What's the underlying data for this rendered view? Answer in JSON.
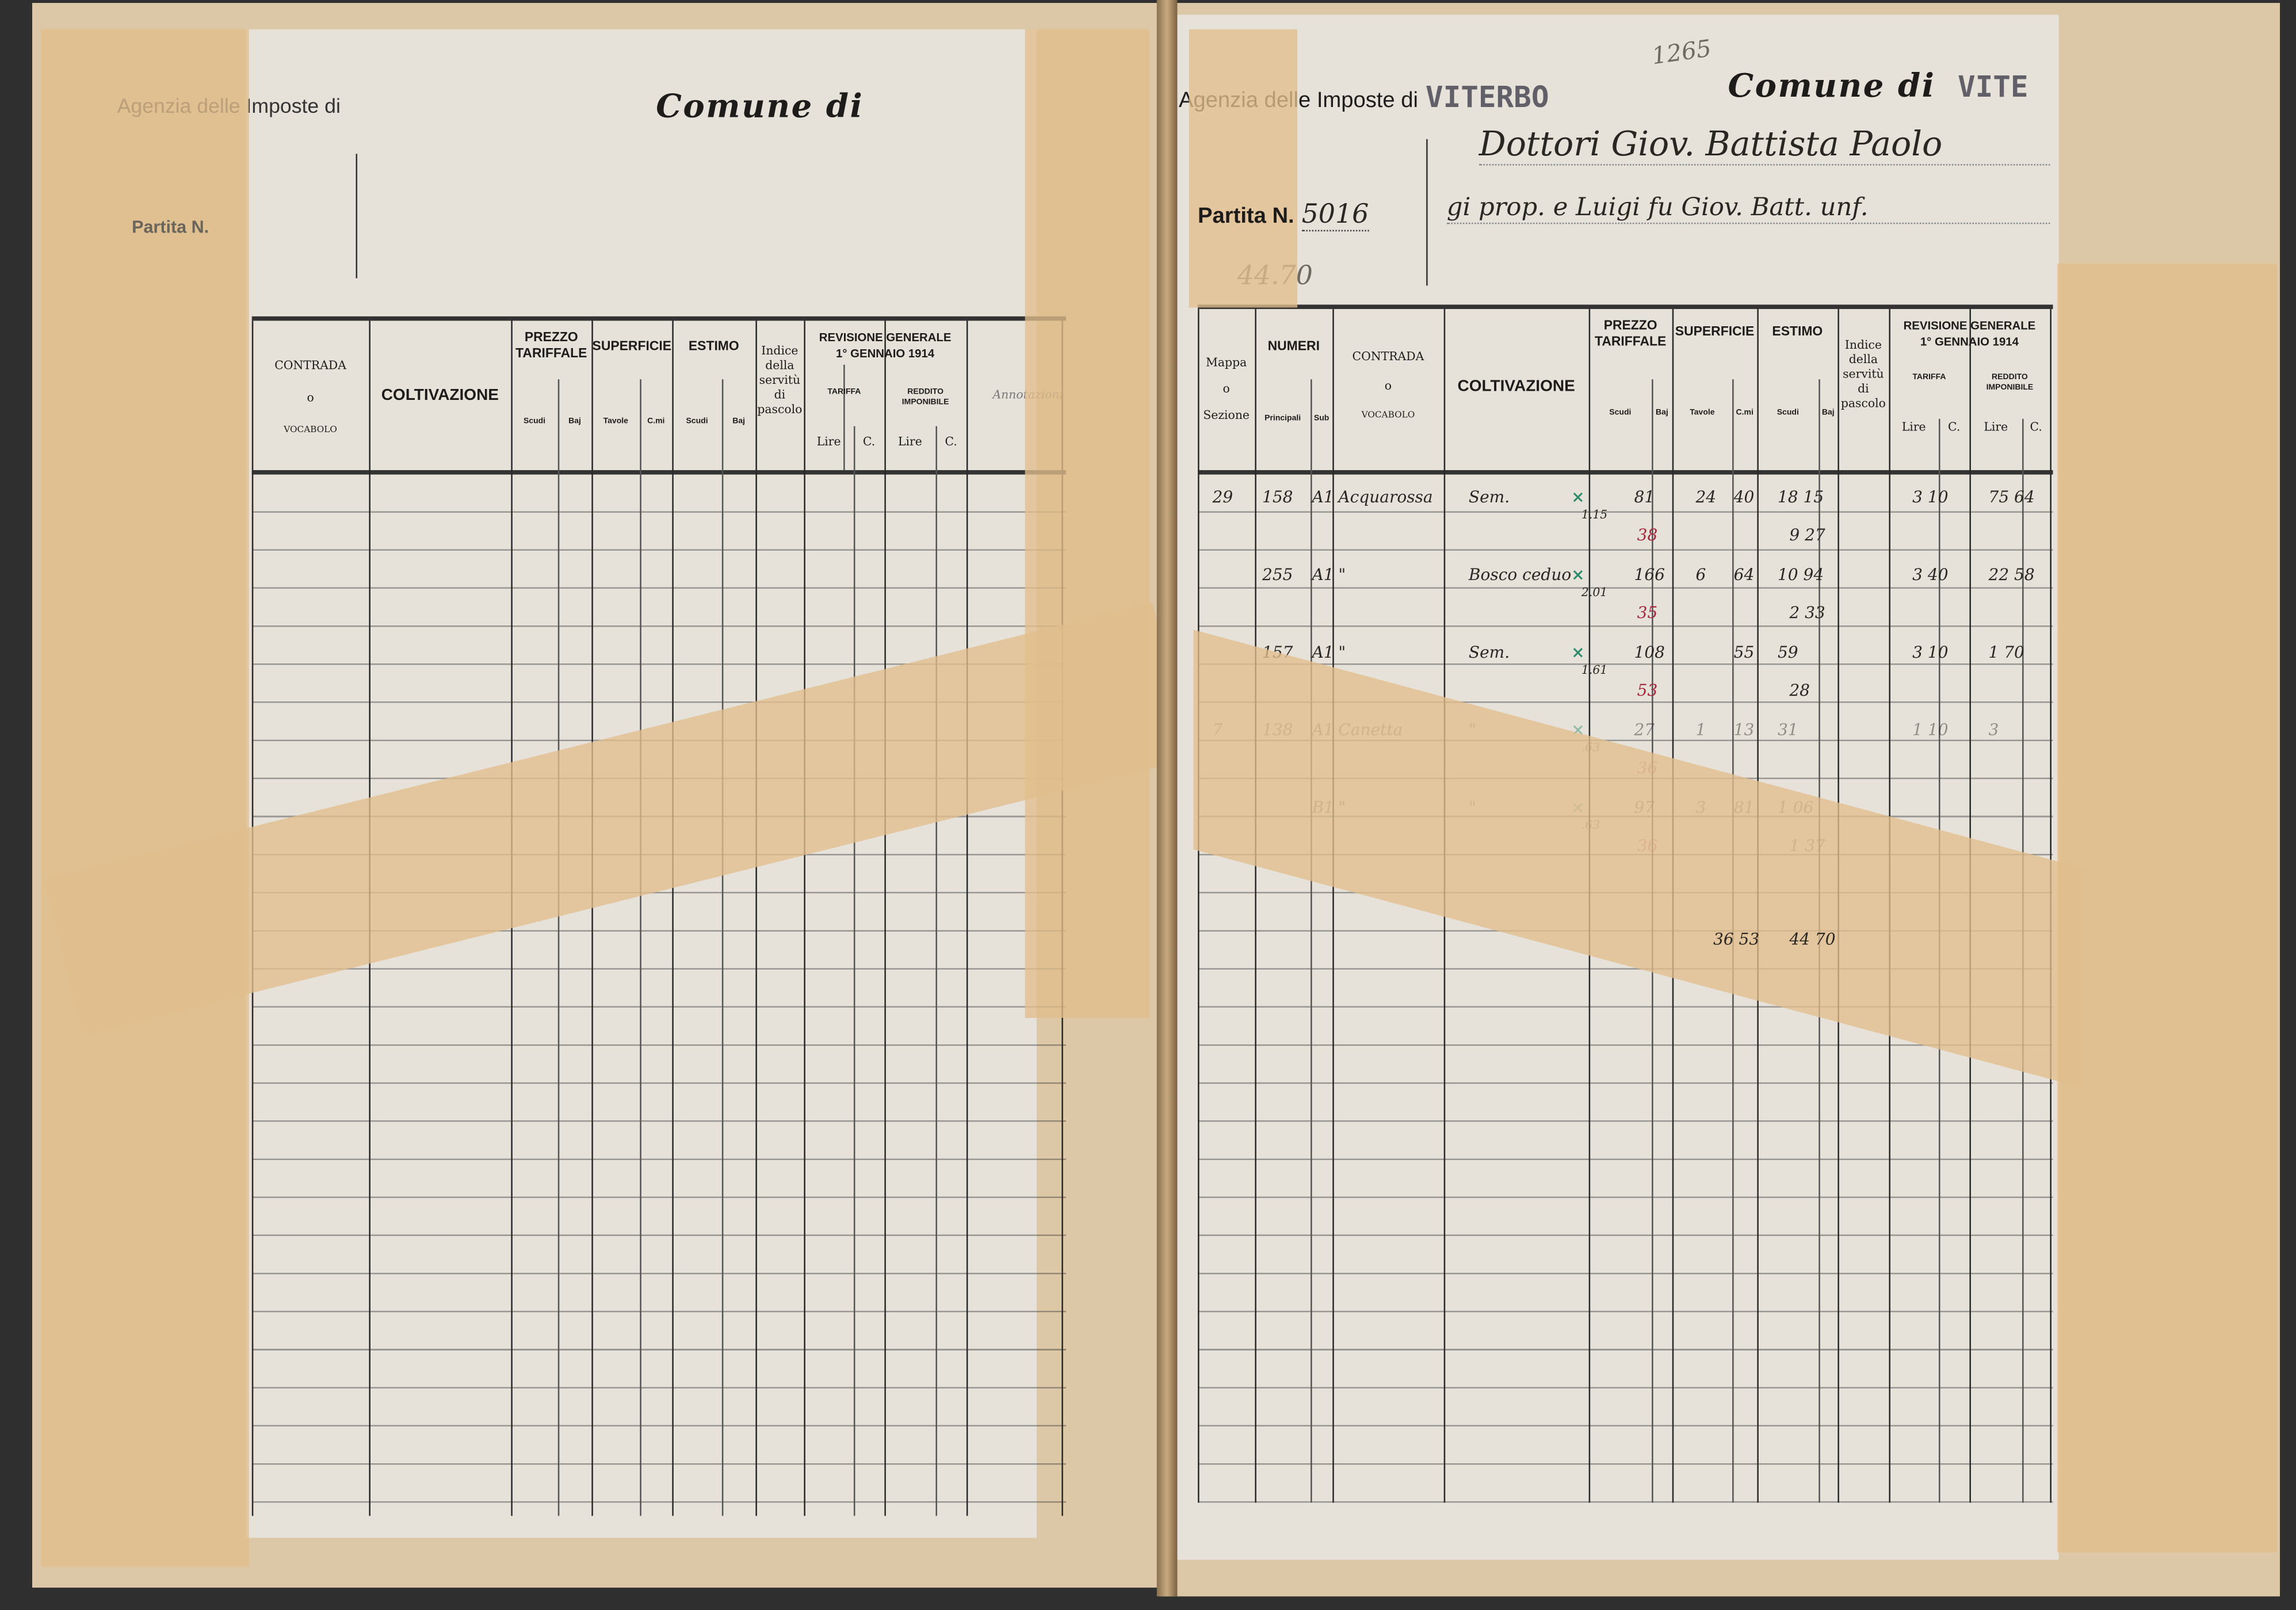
{
  "left_page": {
    "agency_label": "Agenzia delle Imposte di",
    "comune_label": "Comune di",
    "partita_label": "Partita N.",
    "columns": {
      "contrada": [
        "CONTRADA",
        "o",
        "VOCABOLO"
      ],
      "coltivazione": "COLTIVAZIONE",
      "prezzo": "PREZZO TARIFFALE",
      "superficie": "SUPERFICIE",
      "estimo": "ESTIMO",
      "indice": [
        "Indice",
        "della",
        "servitù",
        "di",
        "pascolo"
      ],
      "revisione": [
        "REVISIONE GENERALE",
        "1° GENNAIO 1914"
      ],
      "tariffa": "TARIFFA",
      "reddito": "REDDITO IMPONIBILE",
      "scudi": "Scudi",
      "baj": "Baj",
      "tavole": "Tavole",
      "cmi": "C.mi",
      "lire": "Lire",
      "c": "C.",
      "annotazioni": "Annotazioni"
    }
  },
  "right_page": {
    "sheet_number": "1265",
    "agency_label": "Agenzia delle Imposte di",
    "agency_stamp": "VITERBO",
    "comune_label": "Comune di",
    "comune_stamp": "VITE",
    "partita_label": "Partita N.",
    "partita_number": "5016",
    "pencil_total": "44.70",
    "owner_line1": "Dottori Giov. Battista Paolo",
    "owner_line2": "gi prop. e Luigi fu Giov. Batt. unf.",
    "columns": {
      "mappa": [
        "Mappa",
        "o",
        "Sezione"
      ],
      "numeri": "NUMERI",
      "principali": "Principali",
      "sub": "Sub",
      "contrada": [
        "CONTRADA",
        "o",
        "VOCABOLO"
      ],
      "coltivazione": "COLTIVAZIONE",
      "prezzo": "PREZZO TARIFFALE",
      "superficie": "SUPERFICIE",
      "estimo": "ESTIMO",
      "indice": [
        "Indice",
        "della",
        "servitù",
        "di",
        "pascolo"
      ],
      "revisione": [
        "REVISIONE GENERALE",
        "1° GENNAIO 1914"
      ],
      "tariffa": "TARIFFA",
      "reddito": "REDDITO IMPONIBILE",
      "scudi": "Scudi",
      "baj": "Baj",
      "tavole": "Tavole",
      "cmi": "C.mi",
      "lire": "Lire",
      "c": "C."
    },
    "entries": [
      {
        "mappa": "29",
        "principali": "158",
        "sub": "A1",
        "contrada": "Acquarossa",
        "coltivazione": "Sem.",
        "mark": "×",
        "prezzo_note": "1.15",
        "prezzo_baj": "81",
        "prezzo_baj_red": "38",
        "sup_tavole": "24",
        "sup_cmi": "40",
        "estimo1": "18 15",
        "estimo2": "9 27",
        "tariffa": "3 10",
        "reddito": "75 64",
        "faded": false
      },
      {
        "mappa": "",
        "principali": "255",
        "sub": "A1",
        "contrada": "\"",
        "coltivazione": "Bosco ceduo",
        "mark": "×",
        "prezzo_note": "2.01",
        "prezzo_baj": "166",
        "prezzo_baj_red": "35",
        "sup_tavole": "6",
        "sup_cmi": "64",
        "estimo1": "10 94",
        "estimo2": "2 33",
        "tariffa": "3 40",
        "reddito": "22 58",
        "faded": false
      },
      {
        "mappa": "",
        "principali": "157",
        "sub": "A1",
        "contrada": "\"",
        "coltivazione": "Sem.",
        "mark": "×",
        "prezzo_note": "1.61",
        "prezzo_baj": "108",
        "prezzo_baj_red": "53",
        "sup_tavole": "",
        "sup_cmi": "55",
        "estimo1": "59",
        "estimo2": "28",
        "tariffa": "3 10",
        "reddito": "1 70",
        "faded": false
      },
      {
        "mappa": "7",
        "principali": "138",
        "sub": "A1",
        "contrada": "Canetta",
        "coltivazione": "\"",
        "mark": "×",
        "prezzo_note": ".63",
        "prezzo_baj": "27",
        "prezzo_baj_red": "36",
        "sup_tavole": "1",
        "sup_cmi": "13",
        "estimo1": "31",
        "estimo2": "",
        "tariffa": "1 10",
        "reddito": "3",
        "faded": true
      },
      {
        "mappa": "",
        "principali": "",
        "sub": "B1",
        "contrada": "\"",
        "coltivazione": "\"",
        "mark": "×",
        "prezzo_note": ".63",
        "prezzo_baj": "97",
        "prezzo_baj_red": "36",
        "sup_tavole": "3",
        "sup_cmi": "81",
        "estimo1": "1 06",
        "estimo2": "1 37",
        "tariffa": "",
        "reddito": "",
        "faded": true
      }
    ],
    "totals": {
      "superficie": "36 53",
      "estimo": "44 70"
    }
  },
  "colors": {
    "paper": "#e6e2da",
    "tape": "#e2be8c",
    "background": "#2f2f2f",
    "red_ink": "#a4283c",
    "green_mark": "#2c8a6a"
  }
}
